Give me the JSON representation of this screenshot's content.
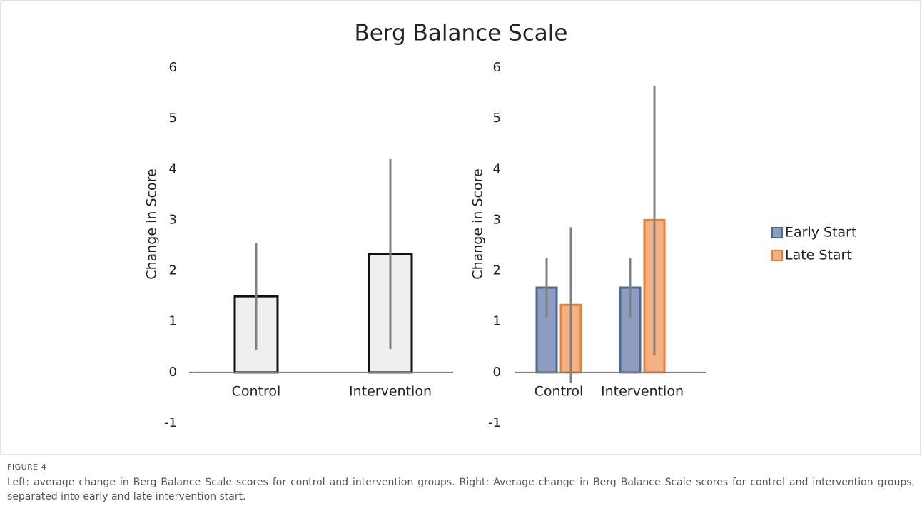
{
  "title": "Berg Balance Scale",
  "figure_label": "FIGURE 4",
  "caption": "Left: average change in Berg Balance Scale scores for control and intervention groups. Right: Average change in Berg Balance Scale scores for control and intervention groups, separated into early and late intervention start.",
  "chart_data": [
    {
      "type": "bar",
      "ylabel": "Change in Score",
      "categories": [
        "Control",
        "Intervention"
      ],
      "series": [
        {
          "name": null,
          "color": "#efefef",
          "edge_color": "#111111",
          "values": [
            1.5,
            2.33
          ],
          "errors": [
            1.05,
            1.87
          ]
        }
      ],
      "error_color": "#808080",
      "ylim": [
        -1,
        6
      ],
      "yticks": [
        -1,
        0,
        1,
        2,
        3,
        4,
        5,
        6
      ],
      "legend": false
    },
    {
      "type": "bar",
      "ylabel": "Change in Score",
      "categories": [
        "Control",
        "Intervention"
      ],
      "series": [
        {
          "name": "Early Start",
          "color": "#8e9dbf",
          "edge_color": "#4a6a9a",
          "values": [
            1.67,
            1.67
          ],
          "errors": [
            0.58,
            0.58
          ]
        },
        {
          "name": "Late Start",
          "color": "#f4b183",
          "edge_color": "#ed7d31",
          "values": [
            1.33,
            3.0
          ],
          "errors": [
            1.53,
            2.65
          ]
        }
      ],
      "error_color": "#808080",
      "ylim": [
        -1,
        6
      ],
      "yticks": [
        -1,
        0,
        1,
        2,
        3,
        4,
        5,
        6
      ],
      "legend": "right"
    }
  ]
}
